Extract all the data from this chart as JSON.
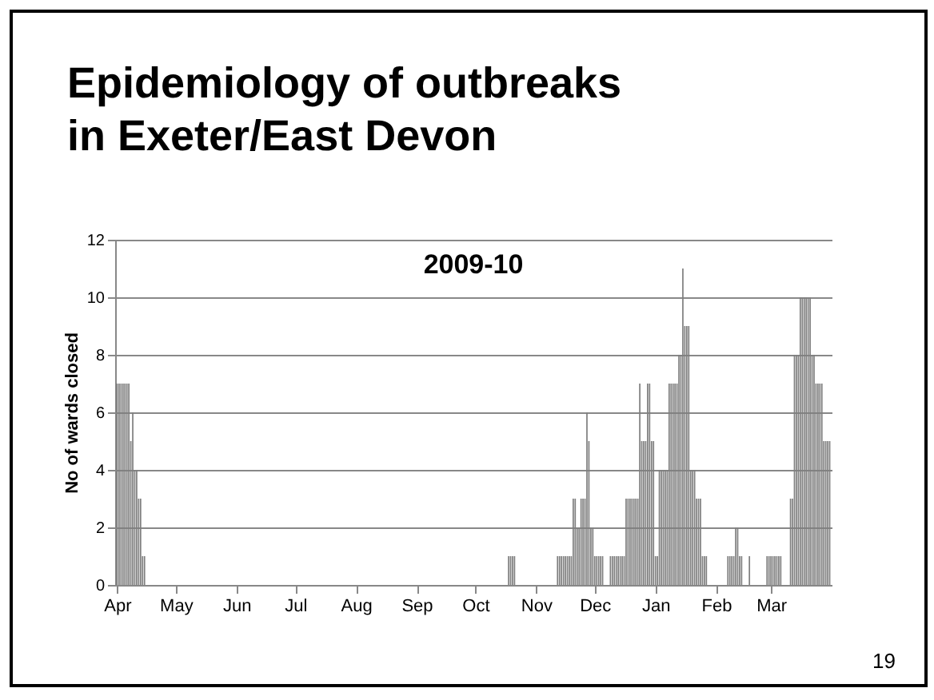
{
  "chart_data": {
    "type": "bar",
    "title": "Epidemiology of outbreaks in Exeter/East Devon",
    "subtitle": "2009-10",
    "ylabel": "No of wards closed",
    "x": [
      "2009-04-01",
      "2009-04-02",
      "2009-04-03",
      "2009-04-04",
      "2009-04-05",
      "2009-04-06",
      "2009-04-07",
      "2009-04-08",
      "2009-04-09",
      "2009-04-10",
      "2009-04-11",
      "2009-04-12",
      "2009-04-13",
      "2009-04-14",
      "2009-04-15",
      "2009-10-18",
      "2009-10-19",
      "2009-10-20",
      "2009-10-21",
      "2009-11-12",
      "2009-11-13",
      "2009-11-14",
      "2009-11-15",
      "2009-11-16",
      "2009-11-17",
      "2009-11-18",
      "2009-11-19",
      "2009-11-20",
      "2009-11-21",
      "2009-11-22",
      "2009-11-23",
      "2009-11-24",
      "2009-11-25",
      "2009-11-26",
      "2009-11-27",
      "2009-11-28",
      "2009-11-29",
      "2009-11-30",
      "2009-12-01",
      "2009-12-02",
      "2009-12-03",
      "2009-12-04",
      "2009-12-05",
      "2009-12-09",
      "2009-12-10",
      "2009-12-11",
      "2009-12-12",
      "2009-12-13",
      "2009-12-14",
      "2009-12-15",
      "2009-12-16",
      "2009-12-17",
      "2009-12-18",
      "2009-12-19",
      "2009-12-20",
      "2009-12-21",
      "2009-12-22",
      "2009-12-23",
      "2009-12-24",
      "2009-12-25",
      "2009-12-26",
      "2009-12-27",
      "2009-12-28",
      "2009-12-29",
      "2009-12-30",
      "2009-12-31",
      "2010-01-01",
      "2010-01-02",
      "2010-01-03",
      "2010-01-04",
      "2010-01-05",
      "2010-01-06",
      "2010-01-07",
      "2010-01-08",
      "2010-01-09",
      "2010-01-10",
      "2010-01-11",
      "2010-01-12",
      "2010-01-13",
      "2010-01-14",
      "2010-01-15",
      "2010-01-16",
      "2010-01-17",
      "2010-01-18",
      "2010-01-19",
      "2010-01-20",
      "2010-01-21",
      "2010-01-22",
      "2010-01-23",
      "2010-01-24",
      "2010-01-25",
      "2010-01-26",
      "2010-01-27",
      "2010-02-07",
      "2010-02-08",
      "2010-02-09",
      "2010-02-10",
      "2010-02-11",
      "2010-02-12",
      "2010-02-13",
      "2010-02-14",
      "2010-02-18",
      "2010-02-27",
      "2010-02-28",
      "2010-03-01",
      "2010-03-02",
      "2010-03-03",
      "2010-03-04",
      "2010-03-05",
      "2010-03-06",
      "2010-03-11",
      "2010-03-12",
      "2010-03-13",
      "2010-03-14",
      "2010-03-15",
      "2010-03-16",
      "2010-03-17",
      "2010-03-18",
      "2010-03-19",
      "2010-03-20",
      "2010-03-21",
      "2010-03-22",
      "2010-03-23",
      "2010-03-24",
      "2010-03-25",
      "2010-03-26",
      "2010-03-27",
      "2010-03-28",
      "2010-03-29",
      "2010-03-30",
      "2010-03-31"
    ],
    "series": [
      {
        "color": "#7f7f7f",
        "values": [
          7,
          7,
          7,
          7,
          7,
          7,
          7,
          5,
          6,
          4,
          4,
          3,
          3,
          1,
          1,
          1,
          1,
          1,
          1,
          1,
          1,
          1,
          1,
          1,
          1,
          1,
          1,
          3,
          3,
          2,
          2,
          3,
          3,
          3,
          6,
          5,
          2,
          2,
          1,
          1,
          1,
          1,
          1,
          1,
          1,
          1,
          1,
          1,
          1,
          1,
          1,
          3,
          3,
          3,
          3,
          3,
          3,
          3,
          7,
          5,
          5,
          5,
          7,
          7,
          5,
          5,
          1,
          1,
          4,
          4,
          4,
          4,
          4,
          7,
          7,
          7,
          7,
          7,
          8,
          8,
          11,
          9,
          9,
          9,
          4,
          4,
          4,
          3,
          3,
          3,
          1,
          1,
          1,
          1,
          1,
          1,
          1,
          2,
          2,
          1,
          1,
          1,
          1,
          1,
          1,
          1,
          1,
          1,
          1,
          1,
          3,
          3,
          8,
          8,
          8,
          10,
          10,
          10,
          10,
          10,
          10,
          8,
          8,
          7,
          7,
          7,
          7,
          5,
          5,
          5,
          5
        ]
      }
    ],
    "xlim": [
      "2009-03-31",
      "2010-04-01"
    ],
    "xticks": [
      {
        "value": "2009-04-01",
        "label": "Apr"
      },
      {
        "value": "2009-05-01",
        "label": "May"
      },
      {
        "value": "2009-06-01",
        "label": "Jun"
      },
      {
        "value": "2009-07-01",
        "label": "Jul"
      },
      {
        "value": "2009-08-01",
        "label": "Aug"
      },
      {
        "value": "2009-09-01",
        "label": "Sep"
      },
      {
        "value": "2009-10-01",
        "label": "Oct"
      },
      {
        "value": "2009-11-01",
        "label": "Nov"
      },
      {
        "value": "2009-12-01",
        "label": "Dec"
      },
      {
        "value": "2010-01-01",
        "label": "Jan"
      },
      {
        "value": "2010-02-01",
        "label": "Feb"
      },
      {
        "value": "2010-03-01",
        "label": "Mar"
      }
    ],
    "ylim": [
      0,
      12
    ],
    "yticks": [
      0,
      2,
      4,
      6,
      8,
      10,
      12
    ],
    "grid": "y",
    "annotations": [
      "19"
    ]
  }
}
